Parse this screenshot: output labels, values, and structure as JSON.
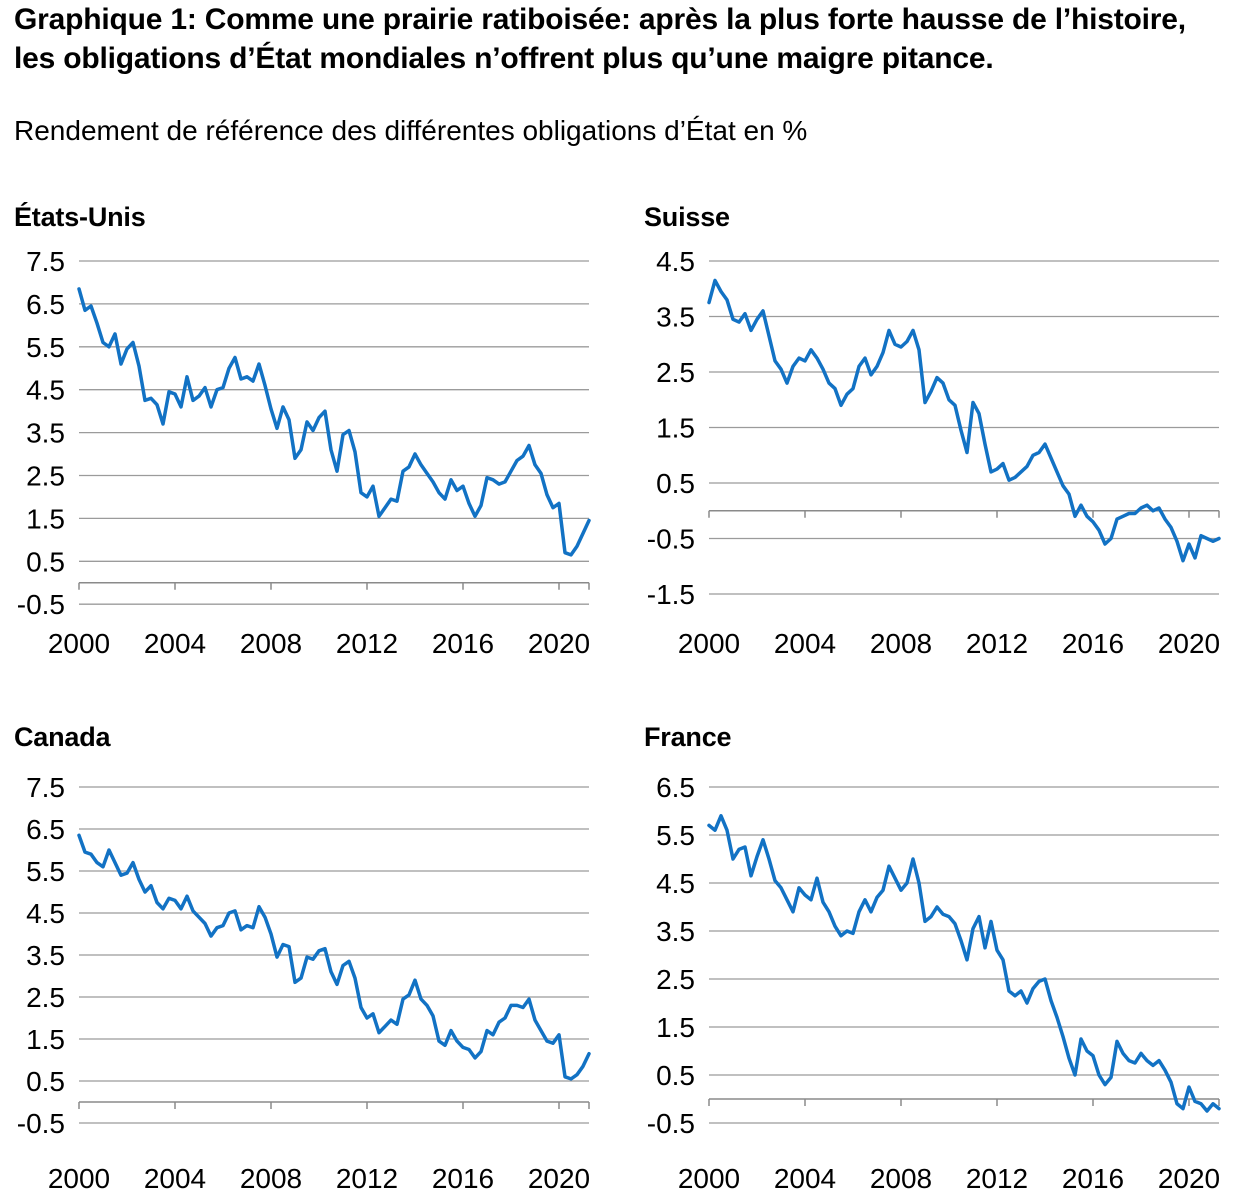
{
  "title": "Graphique 1: Comme une prairie ratiboisée: après la plus forte hausse de l’histoire, les obligations d’État mondiales n’offrent plus qu’une maigre pitance.",
  "subtitle": "Rendement de référence des différentes obligations d’État en %",
  "colors": {
    "line": "#1272c4",
    "grid": "#9b9b9b",
    "axis": "#8a8a8a",
    "text": "#000000"
  },
  "chart_data": [
    {
      "type": "line",
      "title": "États-Unis",
      "ylabel": "",
      "xlabel": "",
      "unit": "%",
      "legend": "none",
      "grid": true,
      "xlim": [
        2000,
        2021.25
      ],
      "ylim": [
        -0.5,
        7.5
      ],
      "xticks": [
        2000,
        2004,
        2008,
        2012,
        2016,
        2020
      ],
      "yticks": [
        7.5,
        6.5,
        5.5,
        4.5,
        3.5,
        2.5,
        1.5,
        0.5,
        -0.5
      ],
      "x_start": 2000,
      "x_step": 0.25,
      "values": [
        6.85,
        6.35,
        6.45,
        6.05,
        5.6,
        5.5,
        5.8,
        5.1,
        5.45,
        5.6,
        5.05,
        4.25,
        4.3,
        4.15,
        3.7,
        4.45,
        4.4,
        4.1,
        4.8,
        4.25,
        4.35,
        4.55,
        4.1,
        4.5,
        4.55,
        5.0,
        5.25,
        4.75,
        4.8,
        4.7,
        5.1,
        4.6,
        4.05,
        3.6,
        4.1,
        3.8,
        2.9,
        3.1,
        3.75,
        3.55,
        3.85,
        4.0,
        3.1,
        2.6,
        3.45,
        3.55,
        3.05,
        2.1,
        2.0,
        2.25,
        1.55,
        1.75,
        1.95,
        1.9,
        2.6,
        2.7,
        3.0,
        2.75,
        2.55,
        2.35,
        2.1,
        1.95,
        2.4,
        2.15,
        2.25,
        1.85,
        1.55,
        1.8,
        2.45,
        2.4,
        2.3,
        2.35,
        2.6,
        2.85,
        2.95,
        3.2,
        2.75,
        2.55,
        2.05,
        1.75,
        1.85,
        0.7,
        0.65,
        0.85,
        1.15,
        1.45
      ]
    },
    {
      "type": "line",
      "title": "Suisse",
      "ylabel": "",
      "xlabel": "",
      "unit": "%",
      "legend": "none",
      "grid": true,
      "xlim": [
        2000,
        2021.25
      ],
      "ylim": [
        -1.5,
        4.5
      ],
      "xticks": [
        2000,
        2004,
        2008,
        2012,
        2016,
        2020
      ],
      "yticks": [
        4.5,
        3.5,
        2.5,
        1.5,
        0.5,
        -0.5,
        -1.5
      ],
      "x_start": 2000,
      "x_step": 0.25,
      "values": [
        3.75,
        4.15,
        3.95,
        3.8,
        3.45,
        3.4,
        3.55,
        3.25,
        3.45,
        3.6,
        3.15,
        2.7,
        2.55,
        2.3,
        2.6,
        2.75,
        2.7,
        2.9,
        2.75,
        2.55,
        2.3,
        2.2,
        1.9,
        2.1,
        2.2,
        2.6,
        2.75,
        2.45,
        2.6,
        2.85,
        3.25,
        3.0,
        2.95,
        3.05,
        3.25,
        2.9,
        1.95,
        2.15,
        2.4,
        2.3,
        2.0,
        1.9,
        1.45,
        1.05,
        1.95,
        1.75,
        1.2,
        0.7,
        0.75,
        0.85,
        0.55,
        0.6,
        0.7,
        0.8,
        1.0,
        1.05,
        1.2,
        0.95,
        0.7,
        0.45,
        0.3,
        -0.1,
        0.1,
        -0.1,
        -0.2,
        -0.35,
        -0.6,
        -0.5,
        -0.15,
        -0.1,
        -0.05,
        -0.05,
        0.05,
        0.1,
        0.0,
        0.05,
        -0.15,
        -0.3,
        -0.55,
        -0.9,
        -0.6,
        -0.85,
        -0.45,
        -0.5,
        -0.55,
        -0.5
      ]
    },
    {
      "type": "line",
      "title": "Canada",
      "ylabel": "",
      "xlabel": "",
      "unit": "%",
      "legend": "none",
      "grid": true,
      "xlim": [
        2000,
        2021.25
      ],
      "ylim": [
        -0.5,
        7.5
      ],
      "xticks": [
        2000,
        2004,
        2008,
        2012,
        2016,
        2020
      ],
      "yticks": [
        7.5,
        6.5,
        5.5,
        4.5,
        3.5,
        2.5,
        1.5,
        0.5,
        -0.5
      ],
      "x_start": 2000,
      "x_step": 0.25,
      "values": [
        6.35,
        5.95,
        5.9,
        5.7,
        5.6,
        6.0,
        5.7,
        5.4,
        5.45,
        5.7,
        5.3,
        5.0,
        5.15,
        4.75,
        4.6,
        4.85,
        4.8,
        4.6,
        4.9,
        4.55,
        4.4,
        4.25,
        3.95,
        4.15,
        4.2,
        4.5,
        4.55,
        4.1,
        4.2,
        4.15,
        4.65,
        4.4,
        4.0,
        3.45,
        3.75,
        3.7,
        2.85,
        2.95,
        3.45,
        3.4,
        3.6,
        3.65,
        3.1,
        2.8,
        3.25,
        3.35,
        2.95,
        2.25,
        2.0,
        2.1,
        1.65,
        1.8,
        1.95,
        1.85,
        2.45,
        2.55,
        2.9,
        2.45,
        2.3,
        2.05,
        1.45,
        1.35,
        1.7,
        1.45,
        1.3,
        1.25,
        1.05,
        1.2,
        1.7,
        1.6,
        1.9,
        2.0,
        2.3,
        2.3,
        2.25,
        2.45,
        1.95,
        1.7,
        1.45,
        1.4,
        1.6,
        0.6,
        0.55,
        0.65,
        0.85,
        1.15
      ]
    },
    {
      "type": "line",
      "title": "France",
      "ylabel": "",
      "xlabel": "",
      "unit": "%",
      "legend": "none",
      "grid": true,
      "xlim": [
        2000,
        2021.25
      ],
      "ylim": [
        -0.5,
        6.5
      ],
      "xticks": [
        2000,
        2004,
        2008,
        2012,
        2016,
        2020
      ],
      "yticks": [
        6.5,
        5.5,
        4.5,
        3.5,
        2.5,
        1.5,
        0.5,
        -0.5
      ],
      "x_start": 2000,
      "x_step": 0.25,
      "values": [
        5.7,
        5.6,
        5.9,
        5.6,
        5.0,
        5.2,
        5.25,
        4.65,
        5.05,
        5.4,
        5.0,
        4.55,
        4.4,
        4.15,
        3.9,
        4.4,
        4.25,
        4.15,
        4.6,
        4.1,
        3.9,
        3.6,
        3.4,
        3.5,
        3.45,
        3.9,
        4.15,
        3.9,
        4.2,
        4.35,
        4.85,
        4.6,
        4.35,
        4.5,
        5.0,
        4.5,
        3.7,
        3.8,
        4.0,
        3.85,
        3.8,
        3.65,
        3.3,
        2.9,
        3.55,
        3.8,
        3.15,
        3.7,
        3.1,
        2.9,
        2.25,
        2.15,
        2.25,
        2.0,
        2.3,
        2.45,
        2.5,
        2.05,
        1.7,
        1.3,
        0.85,
        0.5,
        1.25,
        1.0,
        0.9,
        0.5,
        0.3,
        0.45,
        1.2,
        0.95,
        0.8,
        0.75,
        0.95,
        0.8,
        0.7,
        0.8,
        0.6,
        0.35,
        -0.1,
        -0.2,
        0.25,
        -0.05,
        -0.1,
        -0.25,
        -0.1,
        -0.2
      ]
    }
  ]
}
